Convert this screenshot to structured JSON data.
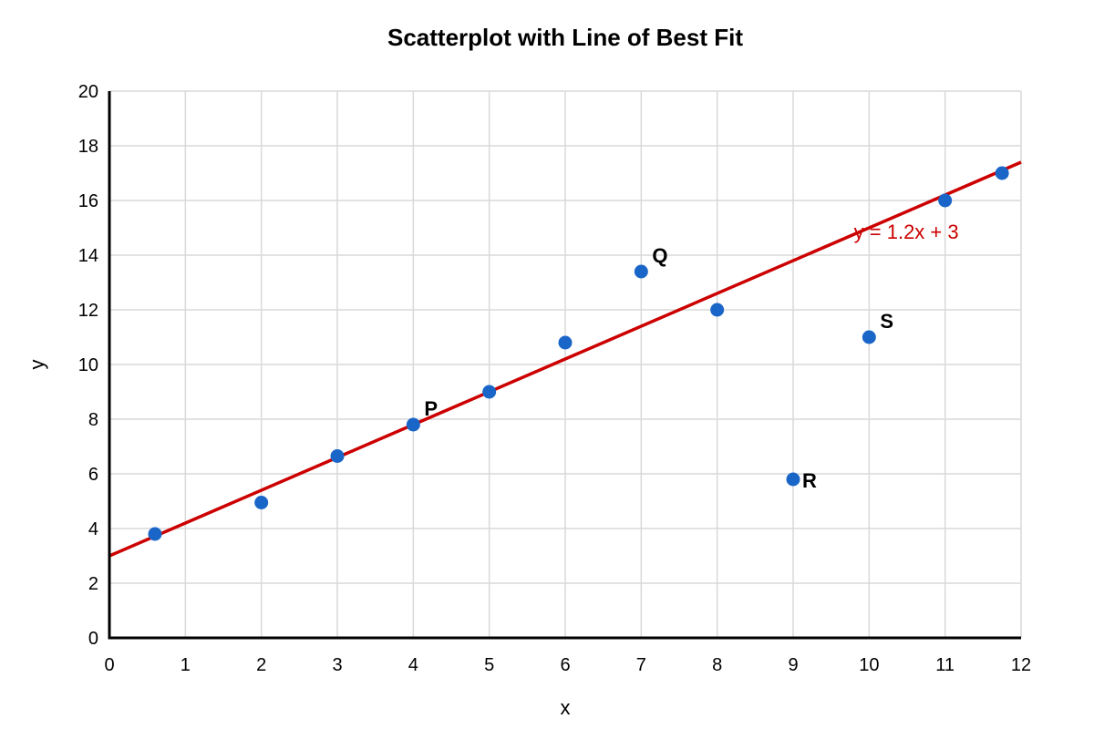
{
  "chart_data": {
    "type": "scatter",
    "title": "Scatterplot with Line of Best Fit",
    "xlabel": "x",
    "ylabel": "y",
    "xlim": [
      0,
      12
    ],
    "ylim": [
      0,
      20
    ],
    "x_ticks": [
      0,
      1,
      2,
      3,
      4,
      5,
      6,
      7,
      8,
      9,
      10,
      11,
      12
    ],
    "y_ticks": [
      0,
      2,
      4,
      6,
      8,
      10,
      12,
      14,
      16,
      18,
      20
    ],
    "grid": true,
    "legend": "none",
    "point_color": "#1a66c8",
    "line_color": "#cc0000",
    "series": [
      {
        "points": [
          {
            "x": 0.6,
            "y": 3.8,
            "label": ""
          },
          {
            "x": 2,
            "y": 4.95,
            "label": ""
          },
          {
            "x": 3,
            "y": 6.65,
            "label": ""
          },
          {
            "x": 4,
            "y": 7.8,
            "label": "P"
          },
          {
            "x": 5,
            "y": 9.0,
            "label": ""
          },
          {
            "x": 6,
            "y": 10.8,
            "label": ""
          },
          {
            "x": 7,
            "y": 13.4,
            "label": "Q"
          },
          {
            "x": 8,
            "y": 12.0,
            "label": ""
          },
          {
            "x": 9,
            "y": 5.8,
            "label": "R"
          },
          {
            "x": 10,
            "y": 11.0,
            "label": "S"
          },
          {
            "x": 11,
            "y": 16.0,
            "label": ""
          },
          {
            "x": 11.75,
            "y": 17.0,
            "label": ""
          }
        ]
      }
    ],
    "best_fit": {
      "slope": 1.2,
      "intercept": 3,
      "equation": "y = 1.2x + 3"
    }
  }
}
